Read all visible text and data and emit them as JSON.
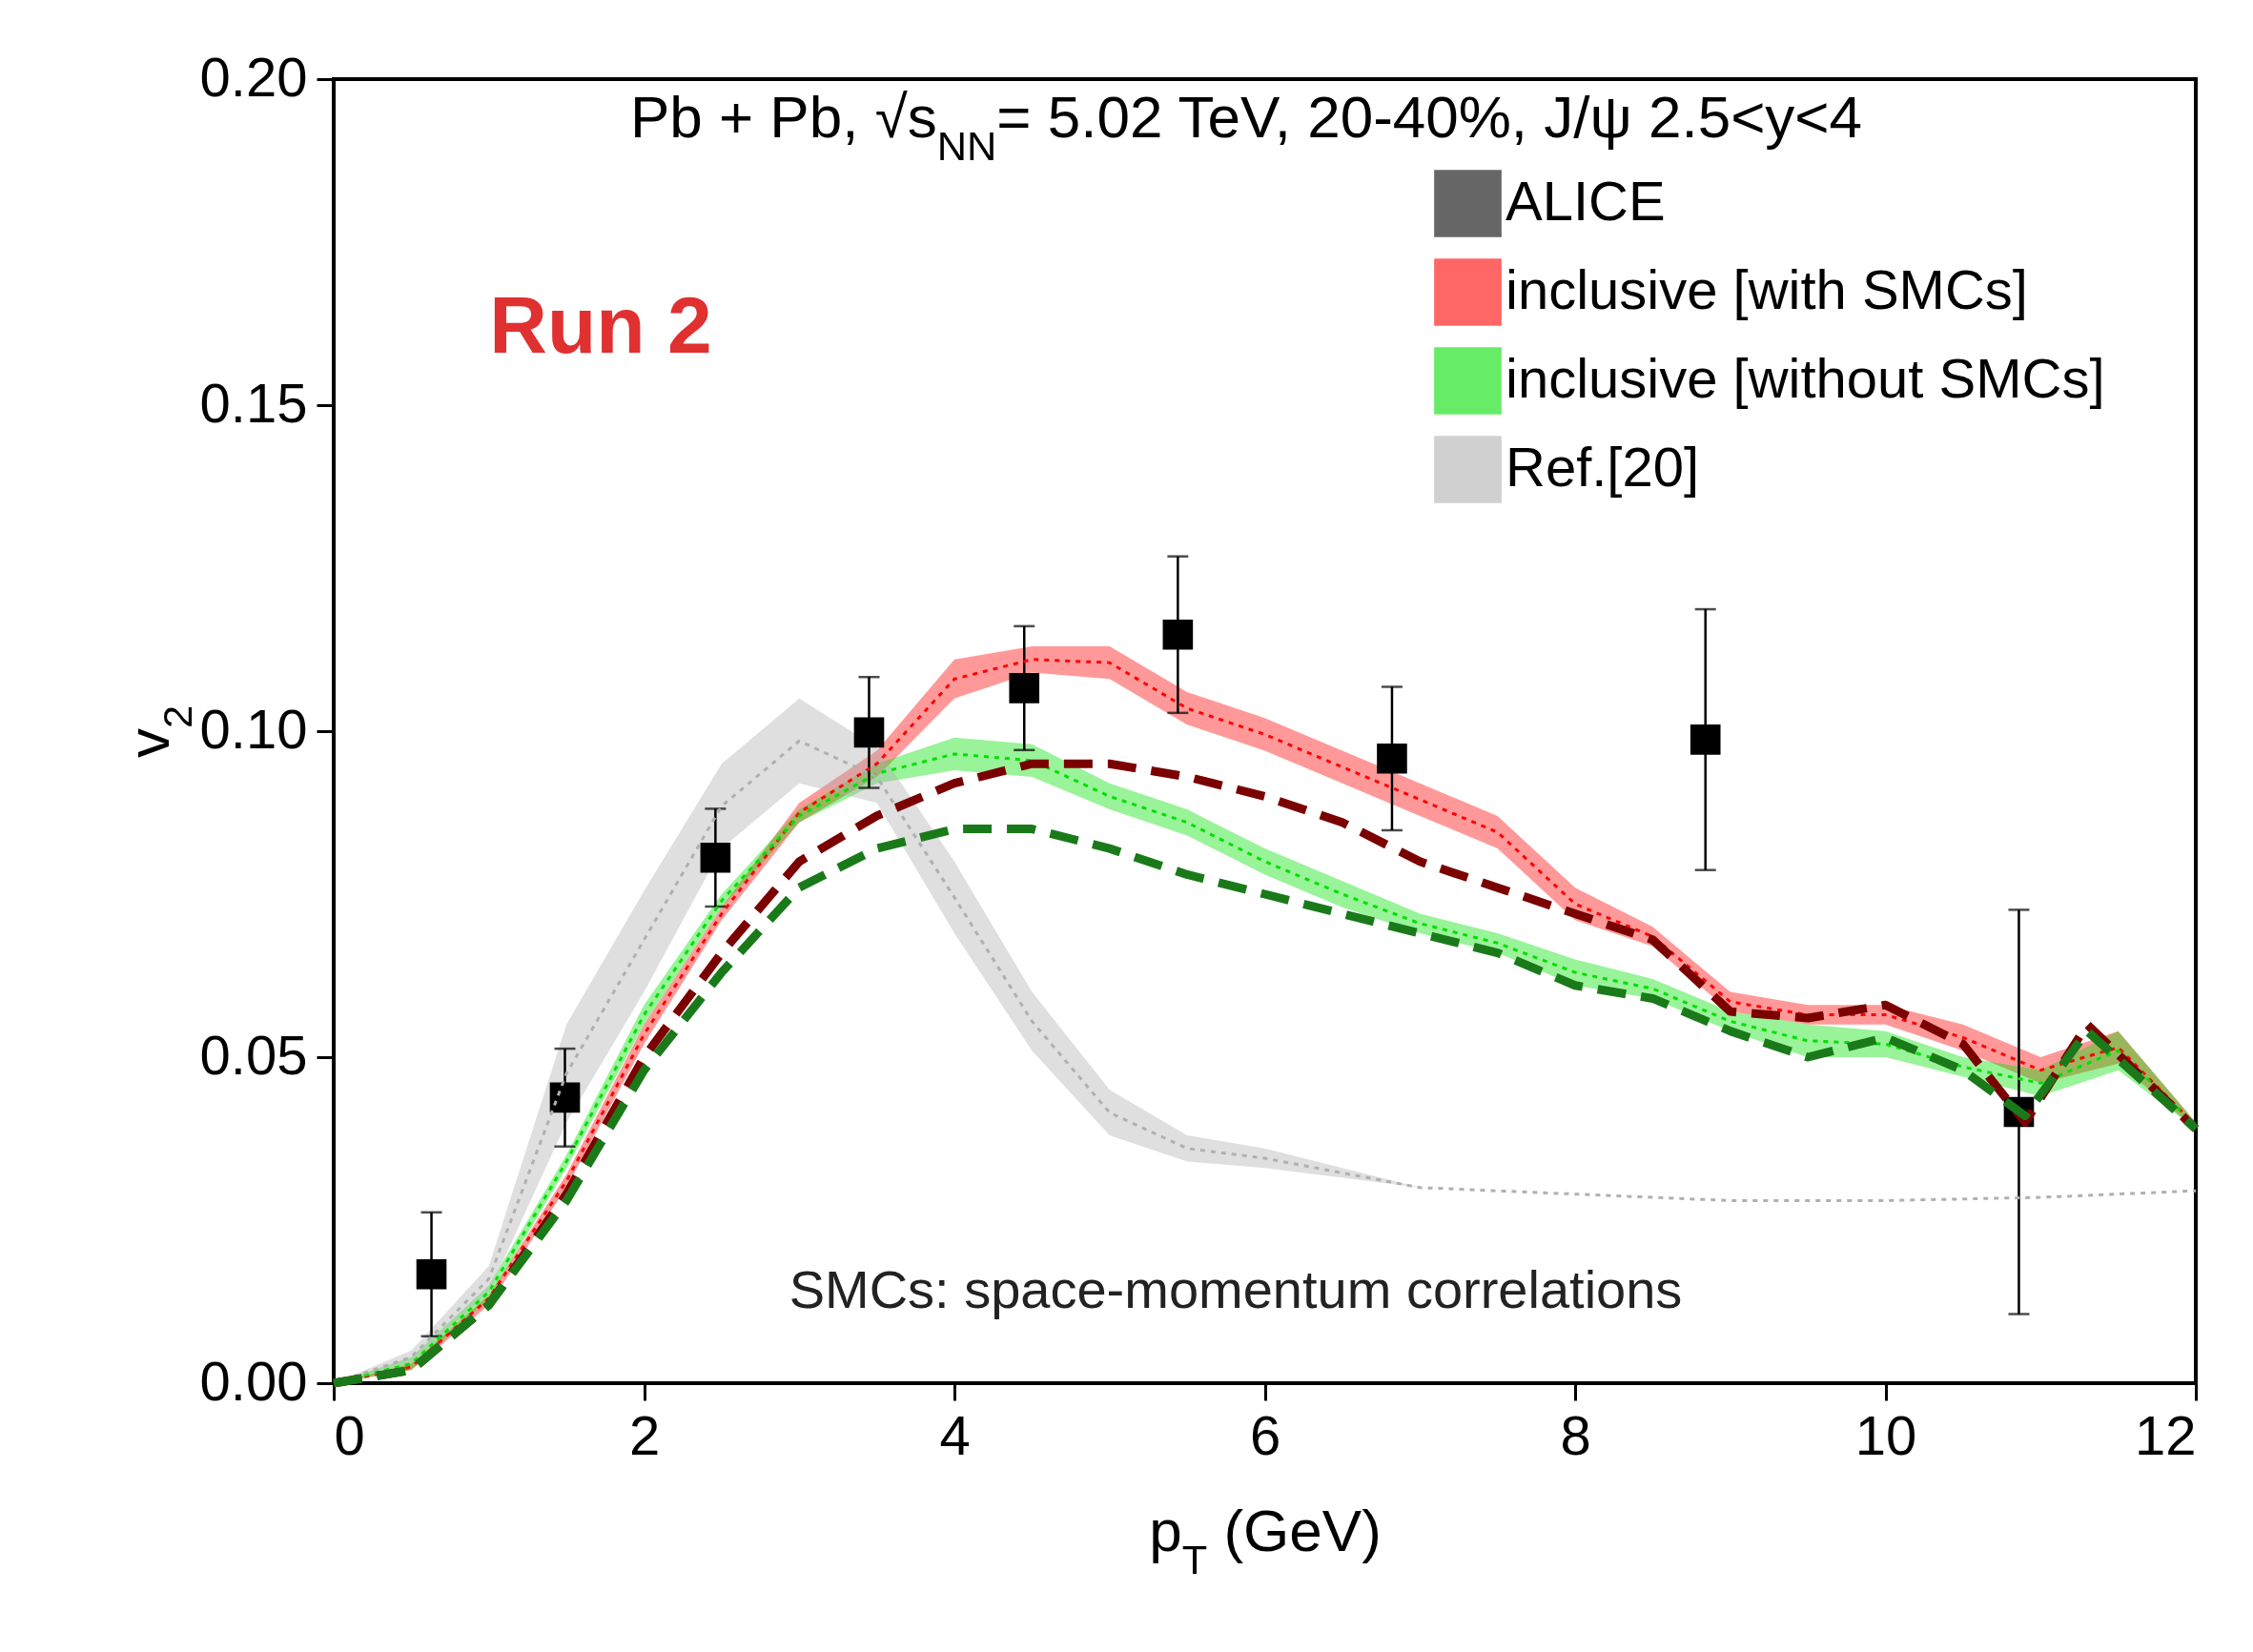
{
  "chart_data": {
    "type": "line",
    "title": "Pb + Pb, √s$_{NN}$= 5.02 TeV, 20-40%, J/ψ 2.5<y<4",
    "xlabel": "p$_{T}$ (GeV)",
    "ylabel": "v$_{2}$",
    "annotations": [
      "Run 2",
      "SMCs: space-momentum correlations"
    ],
    "xlim": [
      0,
      12
    ],
    "xticks": [
      0,
      2,
      4,
      6,
      8,
      10,
      12
    ],
    "ylim": [
      0,
      0.2
    ],
    "yticks": [
      {
        "value": 0,
        "label": "0.00"
      },
      {
        "value": 0.05,
        "label": "0.05"
      },
      {
        "value": 0.1,
        "label": "0.10"
      },
      {
        "value": 0.15,
        "label": "0.15"
      },
      {
        "value": 0.2,
        "label": "0.20"
      }
    ],
    "legend": "top right",
    "series": [
      {
        "name": "ALICE",
        "type": "scatter",
        "color": "#000000",
        "marker": "square",
        "x": [
          0.63,
          1.49,
          2.46,
          3.45,
          4.45,
          5.44,
          6.82,
          8.84,
          10.86
        ],
        "values": [
          0.0167,
          0.0438,
          0.0806,
          0.0998,
          0.1066,
          0.1148,
          0.0958,
          0.0987,
          0.0416
        ],
        "errors": [
          0.0095,
          0.0075,
          0.0075,
          0.0085,
          0.0095,
          0.012,
          0.011,
          0.02,
          0.031
        ]
      },
      {
        "name": "inclusive [with SMCs]",
        "color": "#ff0000",
        "line_style": "dotted",
        "x": [
          0,
          0.5,
          1,
          1.5,
          2,
          2.5,
          3,
          3.5,
          4,
          4.5,
          5,
          5.5,
          6,
          6.5,
          7,
          7.5,
          8,
          8.5,
          9,
          9.5,
          10,
          10.5,
          11,
          11.5,
          12
        ],
        "values": [
          0,
          0.0025,
          0.013,
          0.031,
          0.0535,
          0.072,
          0.0875,
          0.095,
          0.108,
          0.111,
          0.1105,
          0.1035,
          0.0995,
          0.0945,
          0.0895,
          0.0845,
          0.0735,
          0.0685,
          0.0585,
          0.0565,
          0.0565,
          0.053,
          0.048,
          0.0515,
          0.0395
        ],
        "lower": [
          0,
          0.002,
          0.012,
          0.03,
          0.052,
          0.071,
          0.086,
          0.093,
          0.105,
          0.109,
          0.108,
          0.101,
          0.097,
          0.092,
          0.087,
          0.082,
          0.071,
          0.067,
          0.057,
          0.055,
          0.055,
          0.051,
          0.046,
          0.049,
          0.039
        ],
        "upper": [
          0,
          0.003,
          0.0135,
          0.032,
          0.055,
          0.073,
          0.089,
          0.097,
          0.111,
          0.113,
          0.113,
          0.106,
          0.102,
          0.097,
          0.092,
          0.087,
          0.076,
          0.07,
          0.06,
          0.058,
          0.058,
          0.055,
          0.05,
          0.054,
          0.04
        ]
      },
      {
        "name": "inclusive [without SMCs]",
        "color": "#00e000",
        "line_style": "dotted",
        "x": [
          0,
          0.5,
          1,
          1.5,
          2,
          2.5,
          3,
          3.5,
          4,
          4.5,
          5,
          5.5,
          6,
          6.5,
          7,
          7.5,
          8,
          8.5,
          9,
          9.5,
          10,
          10.5,
          11,
          11.5,
          12
        ],
        "values": [
          0,
          0.003,
          0.014,
          0.034,
          0.0565,
          0.074,
          0.087,
          0.0935,
          0.0965,
          0.0955,
          0.09,
          0.086,
          0.08,
          0.075,
          0.0705,
          0.0675,
          0.063,
          0.0605,
          0.0555,
          0.0525,
          0.052,
          0.0485,
          0.046,
          0.051,
          0.0395
        ],
        "lower": [
          0,
          0.002,
          0.013,
          0.033,
          0.055,
          0.073,
          0.086,
          0.092,
          0.094,
          0.093,
          0.088,
          0.084,
          0.078,
          0.073,
          0.069,
          0.066,
          0.061,
          0.059,
          0.054,
          0.05,
          0.05,
          0.047,
          0.044,
          0.048,
          0.039
        ],
        "upper": [
          0,
          0.004,
          0.015,
          0.035,
          0.058,
          0.075,
          0.088,
          0.095,
          0.099,
          0.098,
          0.092,
          0.088,
          0.082,
          0.077,
          0.072,
          0.069,
          0.065,
          0.062,
          0.057,
          0.055,
          0.054,
          0.05,
          0.048,
          0.054,
          0.04
        ]
      },
      {
        "name": "Ref.[20]",
        "color": "#b0b0b0",
        "line_style": "dotted",
        "x": [
          0,
          0.5,
          1,
          1.5,
          2,
          2.5,
          3,
          3.5,
          4,
          4.5,
          5,
          5.5,
          6,
          7,
          8,
          9,
          10,
          11,
          12
        ],
        "values": [
          0,
          0.004,
          0.016,
          0.0475,
          0.068,
          0.0885,
          0.0985,
          0.093,
          0.0745,
          0.0555,
          0.0415,
          0.036,
          0.0345,
          0.03,
          0.029,
          0.028,
          0.028,
          0.0285,
          0.0295
        ],
        "lower": [
          0,
          0.003,
          0.014,
          0.04,
          0.06,
          0.082,
          0.092,
          0.089,
          0.069,
          0.051,
          0.038,
          0.034,
          0.033,
          0.03,
          0.029,
          0.028,
          0.028,
          0.0285,
          0.0295
        ],
        "upper": [
          0,
          0.005,
          0.018,
          0.055,
          0.0755,
          0.095,
          0.105,
          0.0975,
          0.08,
          0.06,
          0.045,
          0.038,
          0.036,
          0.03,
          0.029,
          0.028,
          0.028,
          0.0285,
          0.0295
        ]
      },
      {
        "color": "#7b0000",
        "line_style": "dashed",
        "x": [
          0,
          0.5,
          1,
          1.5,
          2,
          2.5,
          3,
          3.5,
          4,
          4.5,
          5,
          5.5,
          6,
          6.5,
          7,
          7.5,
          8,
          8.5,
          9,
          9.5,
          10,
          10.5,
          10.9,
          11.3,
          12
        ],
        "values": [
          0,
          0.002,
          0.012,
          0.029,
          0.05,
          0.066,
          0.08,
          0.087,
          0.092,
          0.095,
          0.095,
          0.093,
          0.09,
          0.086,
          0.08,
          0.076,
          0.072,
          0.068,
          0.057,
          0.056,
          0.058,
          0.052,
          0.04,
          0.055,
          0.039
        ]
      },
      {
        "color": "#1a7a1a",
        "line_style": "dashed",
        "x": [
          0,
          0.5,
          1,
          1.5,
          2,
          2.5,
          3,
          3.5,
          4,
          4.5,
          5,
          5.5,
          6,
          6.5,
          7,
          7.5,
          8,
          8.5,
          9,
          9.5,
          10,
          10.5,
          10.9,
          11.3,
          12
        ],
        "values": [
          0,
          0.002,
          0.012,
          0.028,
          0.048,
          0.063,
          0.076,
          0.082,
          0.085,
          0.085,
          0.082,
          0.078,
          0.075,
          0.072,
          0.069,
          0.066,
          0.061,
          0.059,
          0.054,
          0.05,
          0.053,
          0.048,
          0.041,
          0.054,
          0.039
        ]
      }
    ]
  }
}
